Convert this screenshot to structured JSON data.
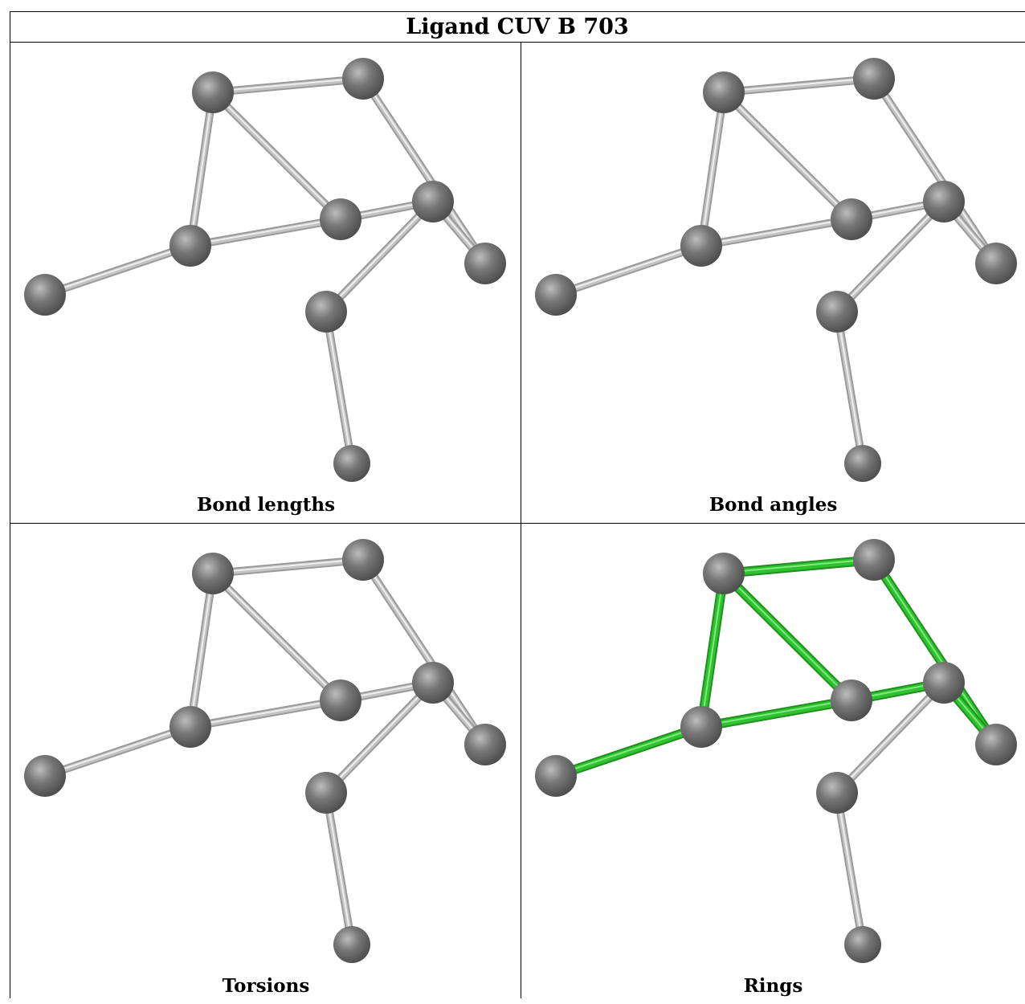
{
  "title": "Ligand CUV B 703",
  "panels": [
    {
      "caption": "Bond lengths",
      "highlight": false
    },
    {
      "caption": "Bond angles",
      "highlight": false
    },
    {
      "caption": "Torsions",
      "highlight": false
    },
    {
      "caption": "Rings",
      "highlight": true
    }
  ],
  "colors": {
    "atom": "#777777",
    "bond": "#c4c4c4",
    "ring_bond": "#2ec22e",
    "border": "#000000"
  },
  "molecule": {
    "atoms": [
      {
        "id": "A",
        "ring": true
      },
      {
        "id": "B",
        "ring": true
      },
      {
        "id": "C",
        "ring": true
      },
      {
        "id": "D",
        "ring": true
      },
      {
        "id": "E",
        "ring": true
      },
      {
        "id": "F",
        "ring": true
      },
      {
        "id": "G",
        "ring": true
      },
      {
        "id": "H",
        "ring": false
      },
      {
        "id": "I",
        "ring": false
      }
    ],
    "bonds": [
      {
        "a": "A",
        "b": "B",
        "ring": true
      },
      {
        "a": "A",
        "b": "D",
        "ring": true
      },
      {
        "a": "A",
        "b": "C",
        "ring": true
      },
      {
        "a": "B",
        "b": "G",
        "ring": true
      },
      {
        "a": "F",
        "b": "G",
        "ring": true
      },
      {
        "a": "D",
        "b": "F",
        "ring": true
      },
      {
        "a": "C",
        "b": "D",
        "ring": true
      },
      {
        "a": "C",
        "b": "E",
        "ring": true
      },
      {
        "a": "F",
        "b": "H",
        "ring": false
      },
      {
        "a": "H",
        "b": "I",
        "ring": false
      }
    ]
  }
}
